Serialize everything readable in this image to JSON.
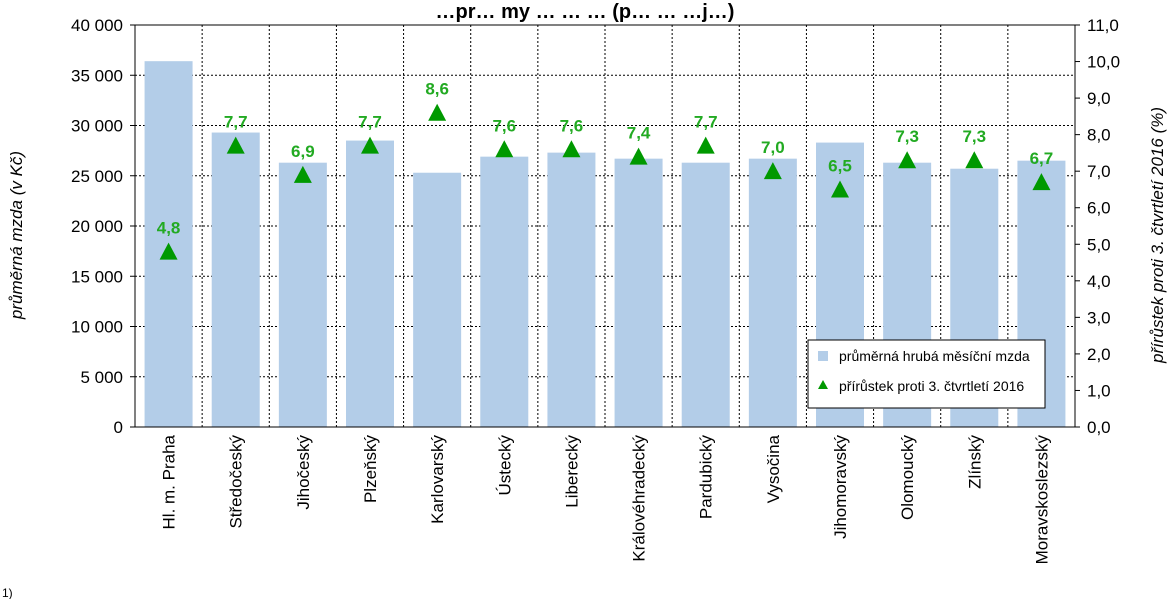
{
  "chart_data": {
    "type": "bar",
    "title": "…pr… my … … … (p… … …j…)",
    "ylabel": "průměrná mzda (v Kč)",
    "y2label": "přírůstek proti 3. čtvrtletí 2016 (%)",
    "ylim": [
      0,
      40000
    ],
    "y2lim": [
      0,
      11
    ],
    "yticks": [
      "0",
      "5 000",
      "10 000",
      "15 000",
      "20 000",
      "25 000",
      "30 000",
      "35 000",
      "40 000"
    ],
    "y2ticks": [
      "0,0",
      "1,0",
      "2,0",
      "3,0",
      "4,0",
      "5,0",
      "6,0",
      "7,0",
      "8,0",
      "9,0",
      "10,0",
      "11,0"
    ],
    "grid": "dotted",
    "categories": [
      "Hl. m. Praha",
      "Středočeský",
      "Jihočeský",
      "Plzeňský",
      "Karlovarský",
      "Ústecký",
      "Liberecký",
      "Královéhradecký",
      "Pardubický",
      "Vysočina",
      "Jihomoravský",
      "Olomoucký",
      "Zlínský",
      "Moravskoslezský"
    ],
    "series": [
      {
        "name": "průměrná hrubá měsíční mzda",
        "type": "bar",
        "axis": "left",
        "values": [
          36400,
          29300,
          26300,
          28500,
          25300,
          26900,
          27300,
          26700,
          26300,
          26700,
          28300,
          26300,
          25700,
          26500
        ]
      },
      {
        "name": "přírůstek proti 3. čtvrtletí 2016",
        "type": "scatter",
        "marker": "triangle",
        "axis": "right",
        "values": [
          4.8,
          7.7,
          6.9,
          7.7,
          8.6,
          7.6,
          7.6,
          7.4,
          7.7,
          7.0,
          6.5,
          7.3,
          7.3,
          6.7
        ],
        "labels": [
          "4,8",
          "7,7",
          "6,9",
          "7,7",
          "8,6",
          "7,6",
          "7,6",
          "7,4",
          "7,7",
          "7,0",
          "6,5",
          "7,3",
          "7,3",
          "6,7"
        ]
      }
    ],
    "legend_position": "bottom-right",
    "colors": {
      "bar": "#b3cde8",
      "marker": "#009900",
      "label": "#22aa22",
      "grid": "#000000"
    }
  },
  "footnote": "1)"
}
